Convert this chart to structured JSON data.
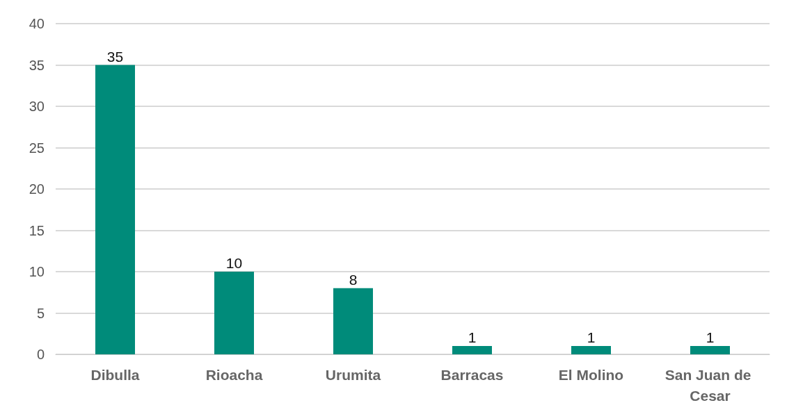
{
  "chart_data": {
    "type": "bar",
    "categories": [
      "Dibulla",
      "Rioacha",
      "Urumita",
      "Barracas",
      "El Molino",
      "San Juan de Cesar"
    ],
    "values": [
      35,
      10,
      8,
      1,
      1,
      1
    ],
    "color": "#008b7a",
    "ylim": [
      0,
      40
    ],
    "yticks": [
      0,
      5,
      10,
      15,
      20,
      25,
      30,
      35,
      40
    ],
    "grid": "y",
    "data_labels": true
  }
}
